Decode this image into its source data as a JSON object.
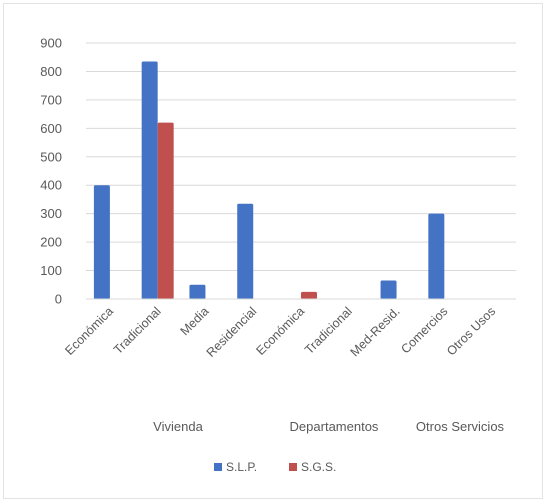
{
  "chart_data": {
    "type": "bar",
    "title": "",
    "xlabel": "",
    "ylabel": "",
    "ylim": [
      0,
      900
    ],
    "yticks": [
      0,
      100,
      200,
      300,
      400,
      500,
      600,
      700,
      800,
      900
    ],
    "grid": true,
    "legend_position": "bottom",
    "categories": [
      "Económica",
      "Tradicional",
      "Media",
      "Residencial",
      "Económica",
      "Tradicional",
      "Med-Resid.",
      "Comercios",
      "Otros Usos"
    ],
    "groups": [
      {
        "label": "Vivienda",
        "span": [
          0,
          3
        ]
      },
      {
        "label": "Departamentos",
        "span": [
          4,
          6
        ]
      },
      {
        "label": "Otros Servicios",
        "span": [
          7,
          8
        ]
      }
    ],
    "series": [
      {
        "name": "S.L.P.",
        "color": "#4472C4",
        "values": [
          400,
          835,
          50,
          335,
          0,
          0,
          65,
          300,
          0
        ]
      },
      {
        "name": "S.G.S.",
        "color": "#C0504D",
        "values": [
          0,
          620,
          0,
          0,
          25,
          0,
          0,
          0,
          0
        ]
      }
    ]
  }
}
